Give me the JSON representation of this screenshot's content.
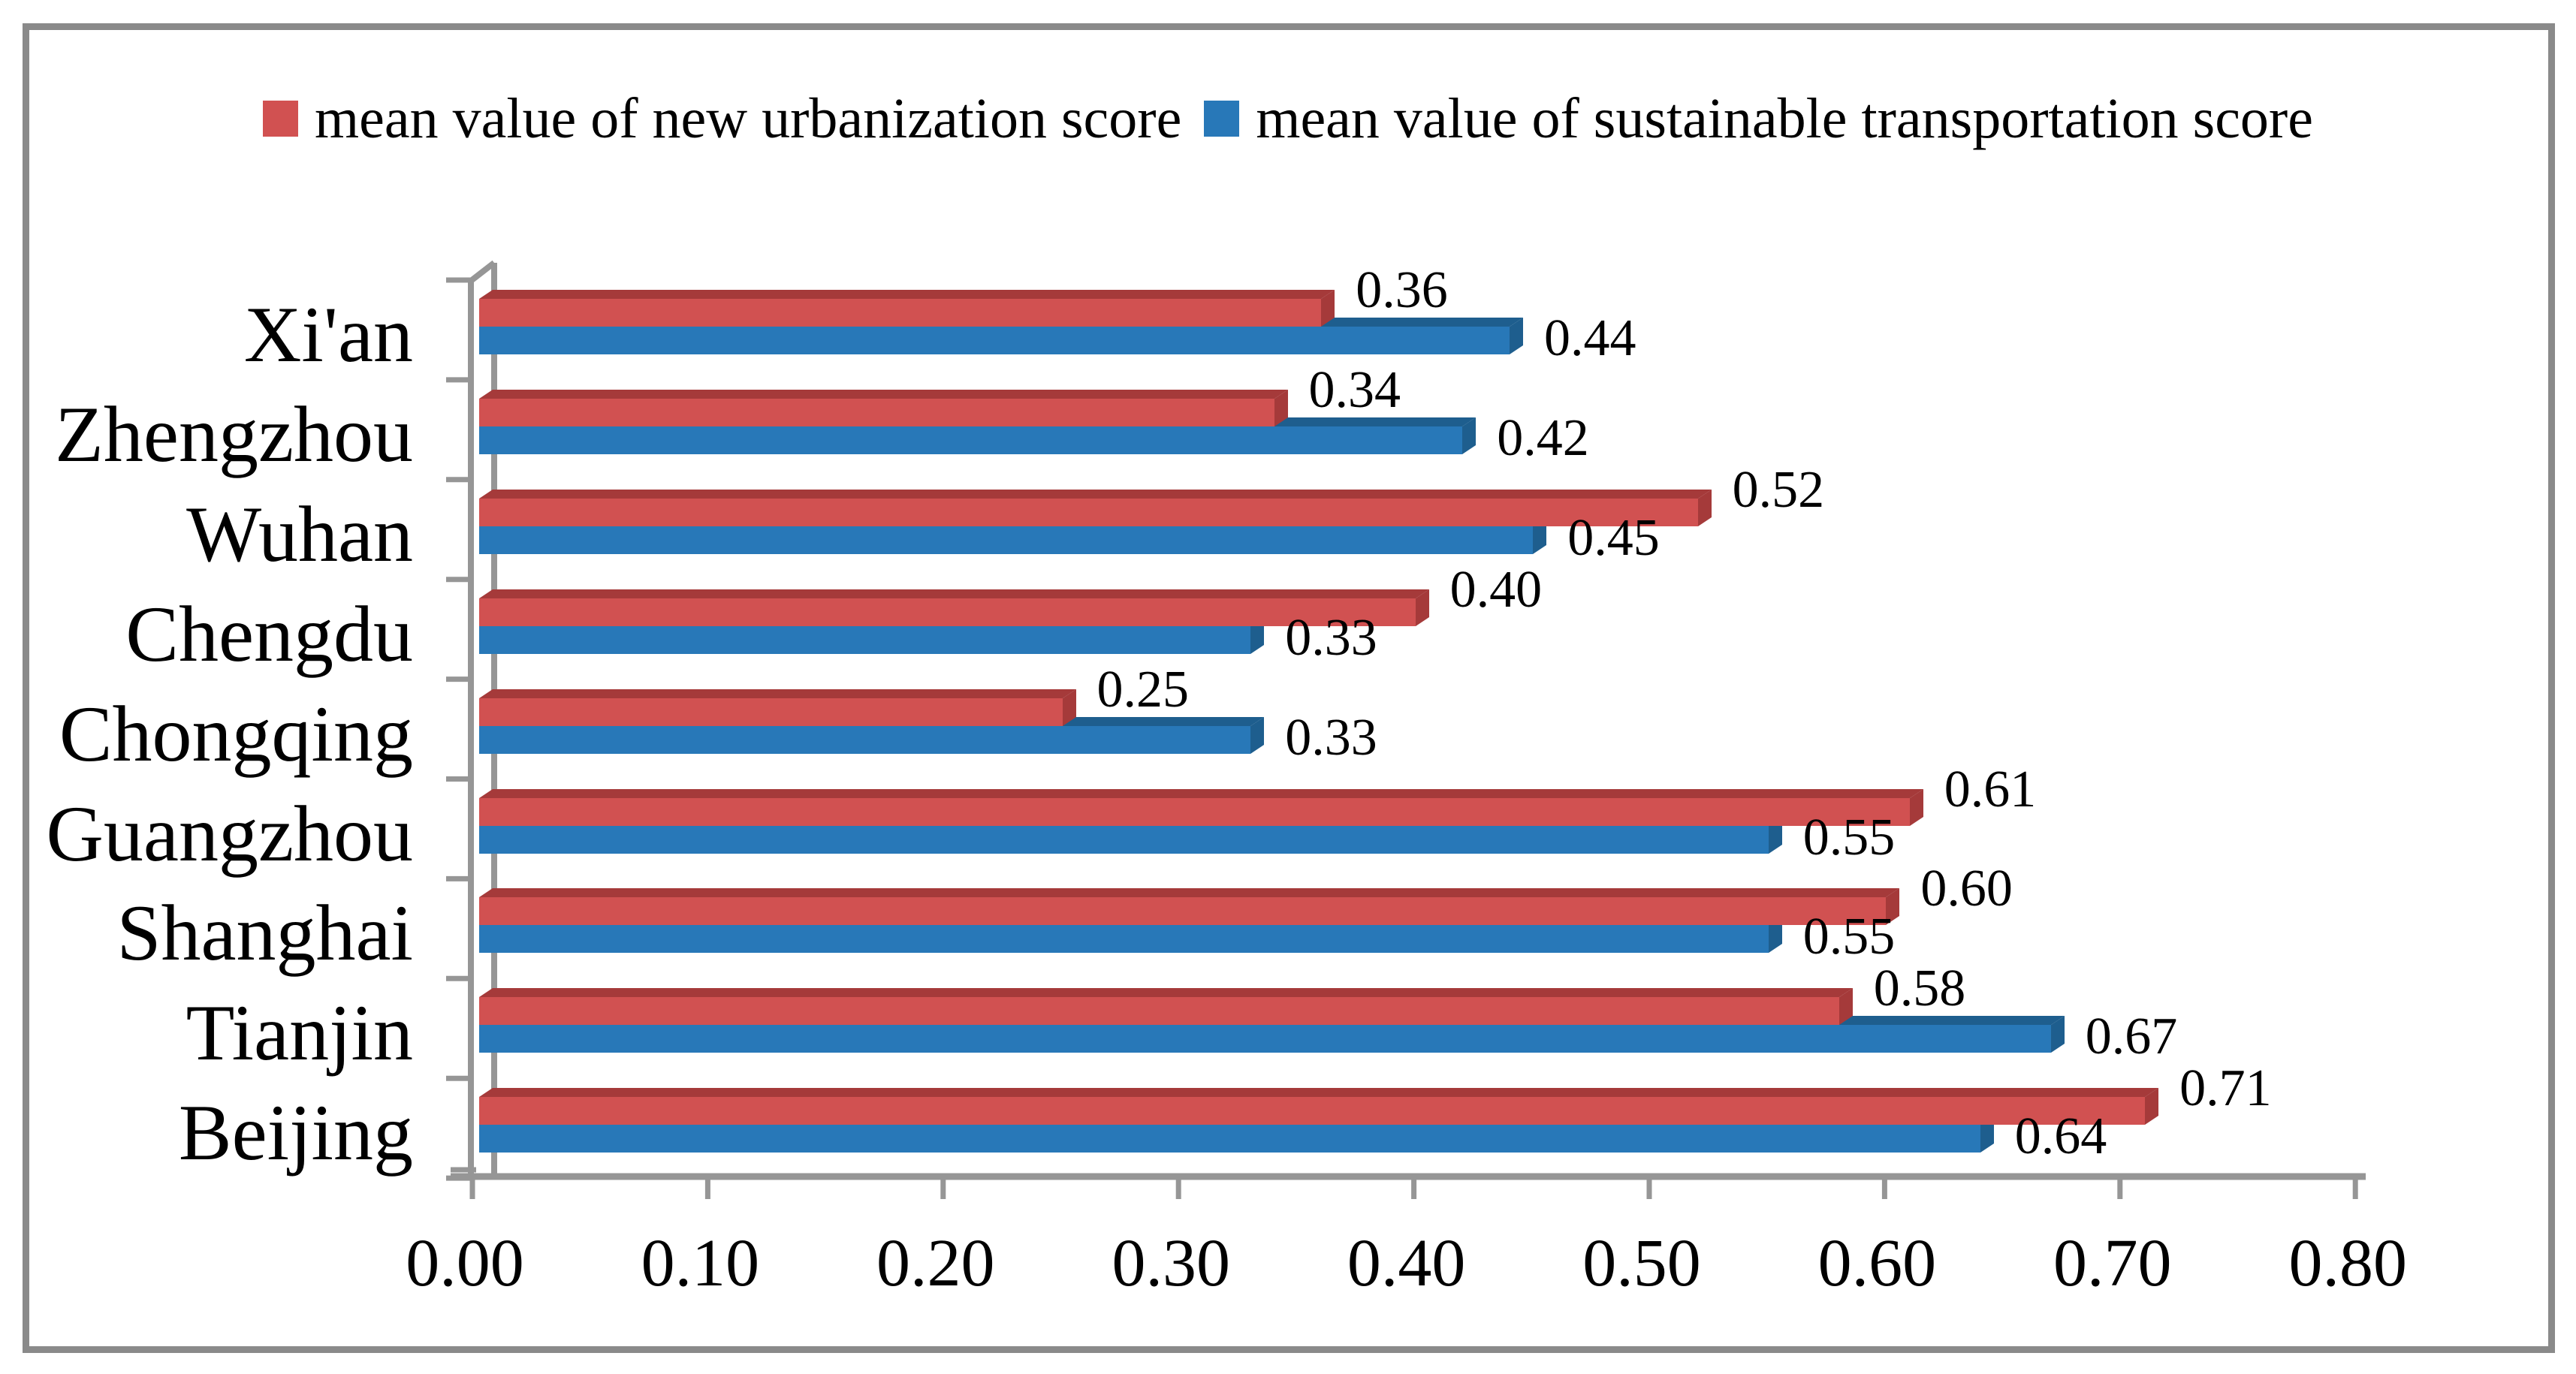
{
  "figure": {
    "background": "#FFFFFF",
    "frame_color": "#8A8A8A",
    "axis_color": "#969696"
  },
  "chart_data": {
    "type": "bar",
    "orientation": "horizontal",
    "title": "",
    "xlabel": "",
    "ylabel": "",
    "legend_position": "top",
    "grid": false,
    "category_order": "top-to-bottom",
    "categories": [
      "Xi'an",
      "Zhengzhou",
      "Wuhan",
      "Chengdu",
      "Chongqing",
      "Guangzhou",
      "Shanghai",
      "Tianjin",
      "Beijing"
    ],
    "series": [
      {
        "name": "mean value of new urbanization score",
        "color": "#D15151",
        "color_dark": "#A53A3A",
        "values": [
          0.36,
          0.34,
          0.52,
          0.4,
          0.25,
          0.61,
          0.6,
          0.58,
          0.71
        ],
        "labels": [
          "0.36",
          "0.34",
          "0.52",
          "0.40",
          "0.25",
          "0.61",
          "0.60",
          "0.58",
          "0.71"
        ]
      },
      {
        "name": "mean value of sustainable transportation score",
        "color": "#2878B8",
        "color_dark": "#1E5E8E",
        "values": [
          0.44,
          0.42,
          0.45,
          0.33,
          0.33,
          0.55,
          0.55,
          0.67,
          0.64
        ],
        "labels": [
          "0.44",
          "0.42",
          "0.45",
          "0.33",
          "0.33",
          "0.55",
          "0.55",
          "0.67",
          "0.64"
        ]
      }
    ],
    "x_ticks": [
      "0.00",
      "0.10",
      "0.20",
      "0.30",
      "0.40",
      "0.50",
      "0.60",
      "0.70",
      "0.80"
    ],
    "xlim": [
      0.0,
      0.8
    ],
    "value_label_format": "0.00"
  }
}
